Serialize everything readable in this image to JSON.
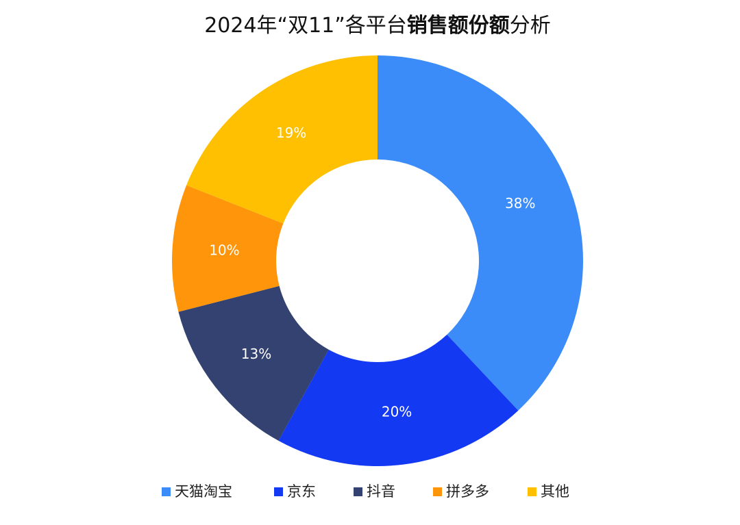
{
  "chart_data": {
    "type": "donut",
    "title": [
      "2024年“双11”各平台",
      "销售额份额",
      "分析"
    ],
    "categories": [
      "天猫淘宝",
      "京东",
      "抖音",
      "拼多多",
      "其他"
    ],
    "values": [
      38,
      20,
      13,
      10,
      19
    ],
    "value_labels": [
      "38%",
      "20%",
      "13%",
      "10%",
      "19%"
    ],
    "colors": [
      "#3b8bf8",
      "#1339f2",
      "#334270",
      "#fe950a",
      "#ffc002"
    ],
    "legend": "bottom"
  }
}
